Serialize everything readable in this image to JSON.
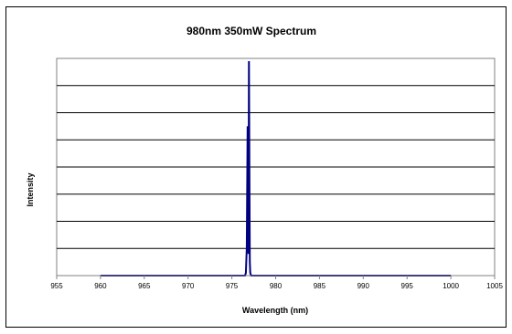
{
  "chart_data": {
    "type": "line",
    "title": "980nm 350mW Spectrum",
    "xlabel": "Wavelength (nm)",
    "ylabel": "Intensity",
    "xlim": [
      955,
      1005
    ],
    "ylim": [
      0,
      8
    ],
    "x_ticks": [
      955,
      960,
      965,
      970,
      975,
      980,
      985,
      990,
      995,
      1000,
      1005
    ],
    "x_tick_labels": [
      "955",
      "960",
      "965",
      "970",
      "975",
      "980",
      "985",
      "990",
      "995",
      "1000",
      "1005"
    ],
    "y_ticks": [
      0,
      1,
      2,
      3,
      4,
      5,
      6,
      7,
      8
    ],
    "show_y_tick_labels": false,
    "grid": "horizontal",
    "plot_background": "#ffffff",
    "plot_border_color": "#808080",
    "legend": "none",
    "series": [
      {
        "color": "#000080",
        "x": [
          960,
          976.5,
          976.6,
          976.7,
          976.8,
          976.85,
          976.9,
          976.95,
          977.0,
          977.05,
          977.1,
          977.2,
          977.3,
          1000
        ],
        "y": [
          0.0,
          0.0,
          0.1,
          1.0,
          5.5,
          3.0,
          0.8,
          7.9,
          4.0,
          0.5,
          0.1,
          0.0,
          0.0,
          0.0
        ]
      }
    ]
  }
}
